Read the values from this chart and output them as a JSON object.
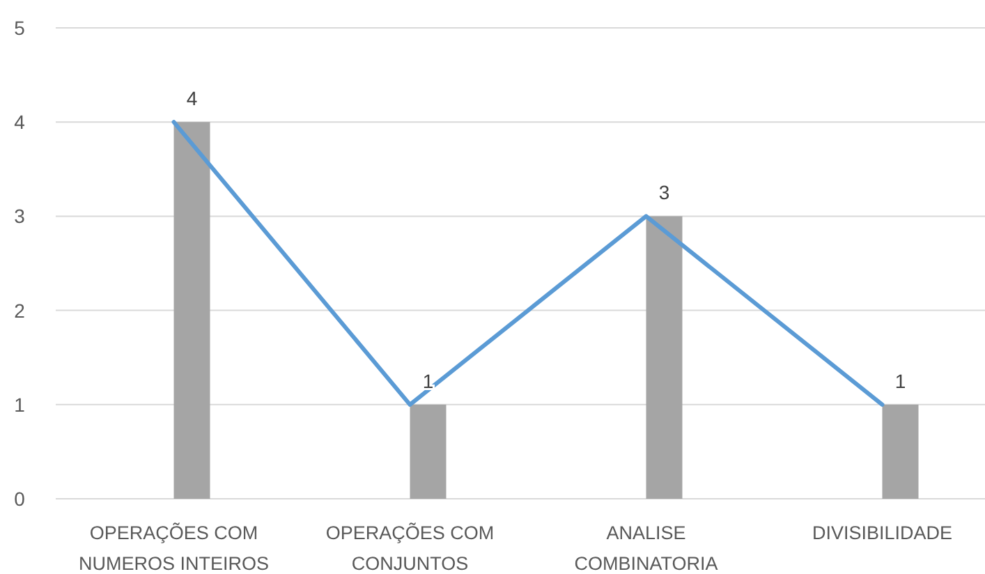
{
  "chart_data": {
    "type": "bar",
    "categories": [
      "OPERAÇÕES COM NUMEROS INTEIROS",
      "OPERAÇÕES COM CONJUNTOS",
      "ANALISE COMBINATORIA",
      "DIVISIBILIDADE"
    ],
    "series": [
      {
        "color": "#a5a5a5",
        "values": [
          4,
          1,
          3,
          1
        ],
        "value_labels": [
          "4",
          "1",
          "3",
          "1"
        ]
      },
      {
        "type": "line",
        "color": "#5b9bd5",
        "values": [
          4,
          1,
          3,
          1
        ]
      }
    ],
    "ylim": [
      0,
      5
    ],
    "yticks": [
      0,
      1,
      2,
      3,
      4,
      5
    ],
    "grid": "y"
  }
}
